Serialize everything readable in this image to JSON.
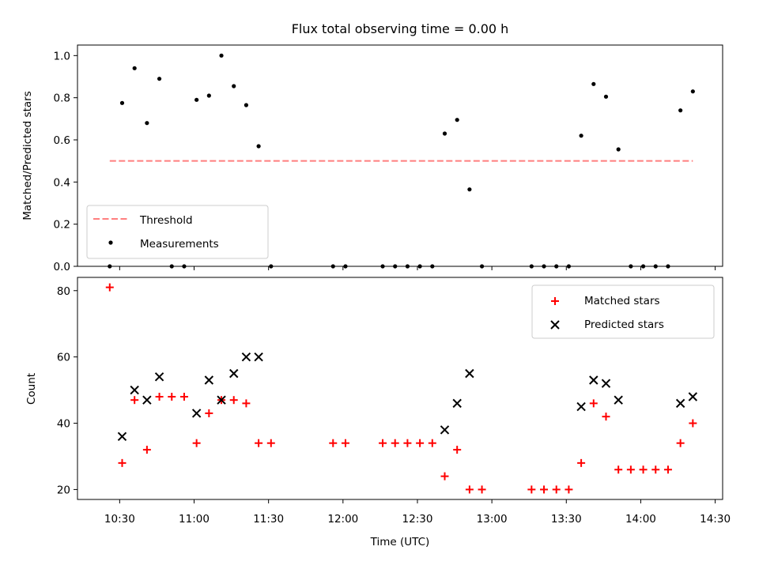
{
  "chart_data": [
    {
      "type": "scatter",
      "title": "Flux total observing time = 0.00 h",
      "ylabel": "Matched/Predicted stars",
      "xlabel": "",
      "ylim": [
        0,
        1.05
      ],
      "xlim": [
        "10:13",
        "14:33"
      ],
      "yticks": [
        0.0,
        0.2,
        0.4,
        0.6,
        0.8,
        1.0
      ],
      "ytick_labels": [
        "0.0",
        "0.2",
        "0.4",
        "0.6",
        "0.8",
        "1.0"
      ],
      "legend_position": "lower-left",
      "threshold": {
        "name": "Threshold",
        "value": 0.5,
        "x_range": [
          "10:26",
          "14:21"
        ],
        "color": "#ff7f7f",
        "style": "dashed"
      },
      "series": [
        {
          "name": "Measurements",
          "marker": "dot",
          "color": "#000000",
          "x": [
            "10:26",
            "10:31",
            "10:36",
            "10:41",
            "10:46",
            "10:51",
            "10:56",
            "11:01",
            "11:06",
            "11:11",
            "11:16",
            "11:21",
            "11:26",
            "11:31",
            "11:56",
            "12:01",
            "12:16",
            "12:21",
            "12:26",
            "12:31",
            "12:36",
            "12:41",
            "12:46",
            "12:51",
            "12:56",
            "13:16",
            "13:21",
            "13:26",
            "13:31",
            "13:36",
            "13:41",
            "13:46",
            "13:51",
            "13:56",
            "14:01",
            "14:06",
            "14:11",
            "14:16",
            "14:21"
          ],
          "y": [
            0.0,
            0.775,
            0.94,
            0.68,
            0.89,
            0.0,
            0.0,
            0.79,
            0.81,
            1.0,
            0.855,
            0.765,
            0.57,
            0.0,
            0.0,
            0.0,
            0.0,
            0.0,
            0.0,
            0.0,
            0.0,
            0.63,
            0.695,
            0.365,
            0.0,
            0.0,
            0.0,
            0.0,
            0.0,
            0.62,
            0.865,
            0.805,
            0.555,
            0.0,
            0.0,
            0.0,
            0.0,
            0.74,
            0.83
          ]
        }
      ]
    },
    {
      "type": "scatter",
      "title": "",
      "ylabel": "Count",
      "xlabel": "Time (UTC)",
      "ylim": [
        17,
        84
      ],
      "xlim": [
        "10:13",
        "14:33"
      ],
      "yticks": [
        20,
        40,
        60,
        80
      ],
      "ytick_labels": [
        "20",
        "40",
        "60",
        "80"
      ],
      "xticks": [
        "10:30",
        "11:00",
        "11:30",
        "12:00",
        "12:30",
        "13:00",
        "13:30",
        "14:00",
        "14:30"
      ],
      "legend_position": "upper-right",
      "series": [
        {
          "name": "Matched stars",
          "marker": "plus",
          "color": "#ff0000",
          "x": [
            "10:26",
            "10:31",
            "10:36",
            "10:41",
            "10:46",
            "10:51",
            "10:56",
            "11:01",
            "11:06",
            "11:11",
            "11:16",
            "11:21",
            "11:26",
            "11:31",
            "11:56",
            "12:01",
            "12:16",
            "12:21",
            "12:26",
            "12:31",
            "12:36",
            "12:41",
            "12:46",
            "12:51",
            "12:56",
            "13:16",
            "13:21",
            "13:26",
            "13:31",
            "13:36",
            "13:41",
            "13:46",
            "13:51",
            "13:56",
            "14:01",
            "14:06",
            "14:11",
            "14:16",
            "14:21"
          ],
          "y": [
            81,
            28,
            47,
            32,
            48,
            48,
            48,
            34,
            43,
            47,
            47,
            46,
            34,
            34,
            34,
            34,
            34,
            34,
            34,
            34,
            34,
            24,
            32,
            20,
            20,
            20,
            20,
            20,
            20,
            28,
            46,
            42,
            26,
            26,
            26,
            26,
            26,
            34,
            40
          ]
        },
        {
          "name": "Predicted stars",
          "marker": "x",
          "color": "#000000",
          "x": [
            "10:31",
            "10:36",
            "10:41",
            "10:46",
            "11:01",
            "11:06",
            "11:11",
            "11:16",
            "11:21",
            "11:26",
            "12:41",
            "12:46",
            "12:51",
            "13:36",
            "13:41",
            "13:46",
            "13:51",
            "14:16",
            "14:21"
          ],
          "y": [
            36,
            50,
            47,
            54,
            43,
            53,
            47,
            55,
            60,
            60,
            38,
            46,
            55,
            45,
            53,
            52,
            47,
            46,
            48
          ]
        }
      ]
    }
  ]
}
